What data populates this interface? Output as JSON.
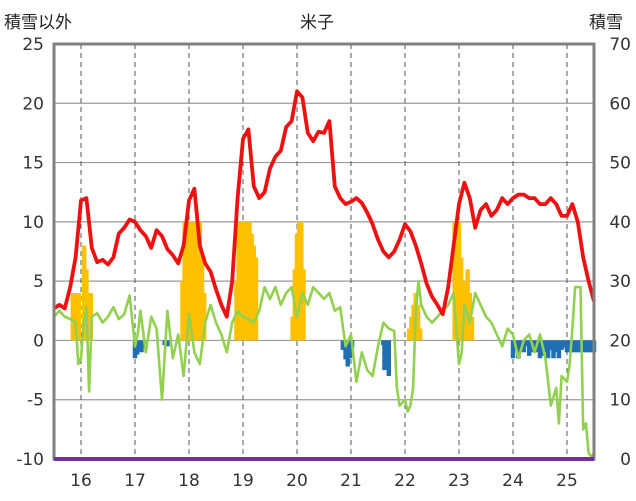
{
  "chart_data": {
    "type": "bar",
    "title": "米子",
    "left_axis_label": "積雪以外",
    "right_axis_label": "積雪",
    "x_ticks": [
      "16",
      "17",
      "18",
      "19",
      "20",
      "21",
      "22",
      "23",
      "24",
      "25"
    ],
    "y_left": {
      "min": -10,
      "max": 25,
      "ticks": [
        -10,
        -5,
        0,
        5,
        10,
        15,
        20,
        25
      ]
    },
    "y_right": {
      "min": 0,
      "max": 70,
      "ticks": [
        0,
        10,
        20,
        30,
        40,
        50,
        60,
        70
      ]
    },
    "x_range": [
      15.5,
      25.5
    ],
    "grid": {
      "x": "dashed vertical at each year",
      "y": "solid horizontal"
    },
    "colors": {
      "red_line": "#ee1111",
      "green_line": "#92d050",
      "orange_bars": "#ffc000",
      "blue_bars": "#1f6fb2",
      "baseline": "#7030a0",
      "frame": "#808080"
    },
    "red_series": [
      [
        15.5,
        2.7
      ],
      [
        15.6,
        3.0
      ],
      [
        15.7,
        2.7
      ],
      [
        15.8,
        4.5
      ],
      [
        15.9,
        7.0
      ],
      [
        16.0,
        11.8
      ],
      [
        16.1,
        12.0
      ],
      [
        16.2,
        7.8
      ],
      [
        16.3,
        6.6
      ],
      [
        16.4,
        6.8
      ],
      [
        16.5,
        6.4
      ],
      [
        16.6,
        7.0
      ],
      [
        16.7,
        9.0
      ],
      [
        16.8,
        9.5
      ],
      [
        16.9,
        10.2
      ],
      [
        17.0,
        10.0
      ],
      [
        17.1,
        9.3
      ],
      [
        17.2,
        8.8
      ],
      [
        17.3,
        7.8
      ],
      [
        17.4,
        9.3
      ],
      [
        17.5,
        8.8
      ],
      [
        17.6,
        7.7
      ],
      [
        17.7,
        7.2
      ],
      [
        17.8,
        6.5
      ],
      [
        17.9,
        8.0
      ],
      [
        18.0,
        11.8
      ],
      [
        18.1,
        12.8
      ],
      [
        18.2,
        8.0
      ],
      [
        18.3,
        6.5
      ],
      [
        18.4,
        5.8
      ],
      [
        18.5,
        4.3
      ],
      [
        18.6,
        3.0
      ],
      [
        18.7,
        2.0
      ],
      [
        18.8,
        5.0
      ],
      [
        18.9,
        12.0
      ],
      [
        19.0,
        17.0
      ],
      [
        19.1,
        17.8
      ],
      [
        19.2,
        13.0
      ],
      [
        19.3,
        12.0
      ],
      [
        19.4,
        12.5
      ],
      [
        19.5,
        14.5
      ],
      [
        19.6,
        15.5
      ],
      [
        19.7,
        16.0
      ],
      [
        19.8,
        18.0
      ],
      [
        19.9,
        18.5
      ],
      [
        20.0,
        21.0
      ],
      [
        20.1,
        20.5
      ],
      [
        20.2,
        17.5
      ],
      [
        20.3,
        16.8
      ],
      [
        20.4,
        17.6
      ],
      [
        20.5,
        17.5
      ],
      [
        20.6,
        18.5
      ],
      [
        20.7,
        13.0
      ],
      [
        20.8,
        12.0
      ],
      [
        20.9,
        11.5
      ],
      [
        21.0,
        11.7
      ],
      [
        21.1,
        12.0
      ],
      [
        21.2,
        11.6
      ],
      [
        21.3,
        10.8
      ],
      [
        21.4,
        9.8
      ],
      [
        21.5,
        8.5
      ],
      [
        21.6,
        7.5
      ],
      [
        21.7,
        7.0
      ],
      [
        21.8,
        7.5
      ],
      [
        21.9,
        8.5
      ],
      [
        22.0,
        9.8
      ],
      [
        22.1,
        9.2
      ],
      [
        22.2,
        8.0
      ],
      [
        22.3,
        6.5
      ],
      [
        22.4,
        4.8
      ],
      [
        22.5,
        3.7
      ],
      [
        22.6,
        3.0
      ],
      [
        22.7,
        2.2
      ],
      [
        22.8,
        4.5
      ],
      [
        22.9,
        8.0
      ],
      [
        23.0,
        11.5
      ],
      [
        23.1,
        13.3
      ],
      [
        23.2,
        12.0
      ],
      [
        23.3,
        9.5
      ],
      [
        23.4,
        11.0
      ],
      [
        23.5,
        11.5
      ],
      [
        23.6,
        10.5
      ],
      [
        23.7,
        11.0
      ],
      [
        23.8,
        12.0
      ],
      [
        23.9,
        11.5
      ],
      [
        24.0,
        12.0
      ],
      [
        24.1,
        12.3
      ],
      [
        24.2,
        12.3
      ],
      [
        24.3,
        12.0
      ],
      [
        24.4,
        12.0
      ],
      [
        24.5,
        11.5
      ],
      [
        24.6,
        11.5
      ],
      [
        24.7,
        12.0
      ],
      [
        24.8,
        11.5
      ],
      [
        24.9,
        10.5
      ],
      [
        25.0,
        10.5
      ],
      [
        25.1,
        11.5
      ],
      [
        25.2,
        10.0
      ],
      [
        25.3,
        7.0
      ],
      [
        25.4,
        5.0
      ],
      [
        25.5,
        3.3
      ]
    ],
    "green_series": [
      [
        15.5,
        2.0
      ],
      [
        15.6,
        2.5
      ],
      [
        15.7,
        2.0
      ],
      [
        15.8,
        1.8
      ],
      [
        15.9,
        1.5
      ],
      [
        15.95,
        -2.0
      ],
      [
        16.0,
        -1.5
      ],
      [
        16.05,
        1.5
      ],
      [
        16.1,
        2.8
      ],
      [
        16.15,
        -4.3
      ],
      [
        16.2,
        2.0
      ],
      [
        16.3,
        2.3
      ],
      [
        16.4,
        1.5
      ],
      [
        16.5,
        2.0
      ],
      [
        16.6,
        2.8
      ],
      [
        16.7,
        1.8
      ],
      [
        16.8,
        2.2
      ],
      [
        16.9,
        3.8
      ],
      [
        17.0,
        -0.5
      ],
      [
        17.05,
        0.5
      ],
      [
        17.1,
        2.5
      ],
      [
        17.2,
        -1.0
      ],
      [
        17.3,
        2.0
      ],
      [
        17.4,
        1.0
      ],
      [
        17.5,
        -5.0
      ],
      [
        17.6,
        2.5
      ],
      [
        17.7,
        -1.5
      ],
      [
        17.8,
        0.5
      ],
      [
        17.9,
        -3.0
      ],
      [
        18.0,
        2.2
      ],
      [
        18.1,
        -1.0
      ],
      [
        18.2,
        -2.0
      ],
      [
        18.3,
        1.5
      ],
      [
        18.4,
        3.0
      ],
      [
        18.5,
        1.5
      ],
      [
        18.6,
        0.5
      ],
      [
        18.7,
        -1.0
      ],
      [
        18.8,
        1.5
      ],
      [
        18.9,
        2.5
      ],
      [
        19.0,
        2.0
      ],
      [
        19.1,
        1.8
      ],
      [
        19.2,
        1.5
      ],
      [
        19.3,
        2.5
      ],
      [
        19.4,
        4.5
      ],
      [
        19.5,
        3.5
      ],
      [
        19.6,
        4.5
      ],
      [
        19.7,
        3.0
      ],
      [
        19.8,
        4.0
      ],
      [
        19.9,
        4.5
      ],
      [
        20.0,
        2.0
      ],
      [
        20.1,
        4.0
      ],
      [
        20.2,
        3.0
      ],
      [
        20.3,
        4.5
      ],
      [
        20.4,
        4.0
      ],
      [
        20.5,
        3.5
      ],
      [
        20.6,
        4.0
      ],
      [
        20.7,
        2.5
      ],
      [
        20.8,
        2.8
      ],
      [
        20.9,
        -0.5
      ],
      [
        21.0,
        0.5
      ],
      [
        21.1,
        -3.5
      ],
      [
        21.2,
        -1.0
      ],
      [
        21.3,
        -2.5
      ],
      [
        21.4,
        -3.0
      ],
      [
        21.5,
        -0.5
      ],
      [
        21.6,
        1.5
      ],
      [
        21.7,
        1.0
      ],
      [
        21.8,
        0.8
      ],
      [
        21.85,
        -4.0
      ],
      [
        21.9,
        -5.5
      ],
      [
        22.0,
        -5.0
      ],
      [
        22.05,
        -6.0
      ],
      [
        22.1,
        -5.5
      ],
      [
        22.15,
        -4.0
      ],
      [
        22.2,
        2.5
      ],
      [
        22.25,
        5.0
      ],
      [
        22.3,
        3.0
      ],
      [
        22.4,
        2.0
      ],
      [
        22.5,
        1.5
      ],
      [
        22.6,
        2.0
      ],
      [
        22.7,
        2.5
      ],
      [
        22.8,
        3.0
      ],
      [
        22.9,
        4.0
      ],
      [
        23.0,
        -2.0
      ],
      [
        23.05,
        -1.0
      ],
      [
        23.1,
        3.0
      ],
      [
        23.2,
        1.5
      ],
      [
        23.3,
        4.0
      ],
      [
        23.4,
        3.0
      ],
      [
        23.5,
        2.0
      ],
      [
        23.6,
        1.5
      ],
      [
        23.7,
        0.5
      ],
      [
        23.8,
        -0.5
      ],
      [
        23.9,
        1.0
      ],
      [
        24.0,
        0.5
      ],
      [
        24.1,
        -1.5
      ],
      [
        24.2,
        0.0
      ],
      [
        24.3,
        0.5
      ],
      [
        24.4,
        -1.0
      ],
      [
        24.5,
        0.5
      ],
      [
        24.6,
        -1.5
      ],
      [
        24.7,
        -5.5
      ],
      [
        24.8,
        -4.0
      ],
      [
        24.85,
        -7.0
      ],
      [
        24.9,
        -3.0
      ],
      [
        25.0,
        -3.5
      ],
      [
        25.05,
        -2.0
      ],
      [
        25.1,
        1.0
      ],
      [
        25.15,
        4.5
      ],
      [
        25.2,
        4.5
      ],
      [
        25.25,
        4.5
      ],
      [
        25.3,
        -7.5
      ],
      [
        25.35,
        -7.0
      ],
      [
        25.4,
        -9.5
      ],
      [
        25.45,
        -9.8
      ],
      [
        25.5,
        -9.5
      ]
    ],
    "snow_bars_orange": [
      [
        15.85,
        4
      ],
      [
        15.88,
        4
      ],
      [
        15.92,
        4
      ],
      [
        15.96,
        4
      ],
      [
        16.06,
        8
      ],
      [
        16.1,
        6
      ],
      [
        16.14,
        4
      ],
      [
        16.18,
        4
      ],
      [
        17.88,
        5
      ],
      [
        17.92,
        10
      ],
      [
        17.96,
        10
      ],
      [
        18.0,
        10
      ],
      [
        18.04,
        10
      ],
      [
        18.08,
        10
      ],
      [
        18.12,
        10
      ],
      [
        18.16,
        10
      ],
      [
        18.2,
        10
      ],
      [
        18.24,
        7
      ],
      [
        18.28,
        4
      ],
      [
        18.88,
        5
      ],
      [
        18.92,
        10
      ],
      [
        18.96,
        10
      ],
      [
        19.0,
        10
      ],
      [
        19.04,
        10
      ],
      [
        19.08,
        10
      ],
      [
        19.12,
        10
      ],
      [
        19.16,
        9
      ],
      [
        19.2,
        8
      ],
      [
        19.24,
        7
      ],
      [
        19.92,
        2
      ],
      [
        19.96,
        6
      ],
      [
        20.0,
        9
      ],
      [
        20.04,
        10
      ],
      [
        20.08,
        10
      ],
      [
        20.12,
        6
      ],
      [
        22.08,
        1
      ],
      [
        22.12,
        2
      ],
      [
        22.16,
        3
      ],
      [
        22.2,
        4
      ],
      [
        22.24,
        3
      ],
      [
        22.28,
        1
      ],
      [
        22.92,
        10
      ],
      [
        22.96,
        10
      ],
      [
        23.0,
        10
      ],
      [
        23.04,
        7
      ],
      [
        23.08,
        5
      ],
      [
        23.12,
        5
      ],
      [
        23.16,
        6
      ],
      [
        23.2,
        4
      ],
      [
        23.24,
        2
      ]
    ],
    "snow_bars_blue": [
      [
        17.0,
        -1.5
      ],
      [
        17.04,
        -1.2
      ],
      [
        17.08,
        -0.8
      ],
      [
        17.12,
        -1.0
      ],
      [
        17.16,
        -0.6
      ],
      [
        17.55,
        -0.4
      ],
      [
        17.6,
        -0.5
      ],
      [
        20.85,
        -0.8
      ],
      [
        20.9,
        -1.6
      ],
      [
        20.94,
        -2.2
      ],
      [
        20.98,
        -1.5
      ],
      [
        21.02,
        -0.6
      ],
      [
        21.6,
        -0.4
      ],
      [
        21.62,
        -2.5
      ],
      [
        21.66,
        -1.0
      ],
      [
        21.7,
        -3.0
      ],
      [
        24.0,
        -1.5
      ],
      [
        24.05,
        -0.8
      ],
      [
        24.1,
        -1.5
      ],
      [
        24.15,
        -0.8
      ],
      [
        24.2,
        -1.0
      ],
      [
        24.25,
        -0.5
      ],
      [
        24.3,
        -1.3
      ],
      [
        24.35,
        -1.0
      ],
      [
        24.4,
        -0.6
      ],
      [
        24.45,
        -1.0
      ],
      [
        24.5,
        -1.5
      ],
      [
        24.55,
        -1.3
      ],
      [
        24.6,
        -1.0
      ],
      [
        24.65,
        -1.5
      ],
      [
        24.7,
        -0.8
      ],
      [
        24.75,
        -1.5
      ],
      [
        24.8,
        -1.0
      ],
      [
        24.85,
        -1.5
      ],
      [
        24.9,
        -0.8
      ],
      [
        24.95,
        -0.6
      ],
      [
        25.0,
        -1.0
      ],
      [
        25.05,
        -1.0
      ],
      [
        25.1,
        -1.0
      ],
      [
        25.15,
        -1.0
      ],
      [
        25.2,
        -1.0
      ],
      [
        25.25,
        -1.0
      ],
      [
        25.3,
        -1.0
      ],
      [
        25.35,
        -1.0
      ],
      [
        25.4,
        -1.0
      ],
      [
        25.45,
        -1.0
      ],
      [
        25.5,
        -1.0
      ]
    ]
  }
}
